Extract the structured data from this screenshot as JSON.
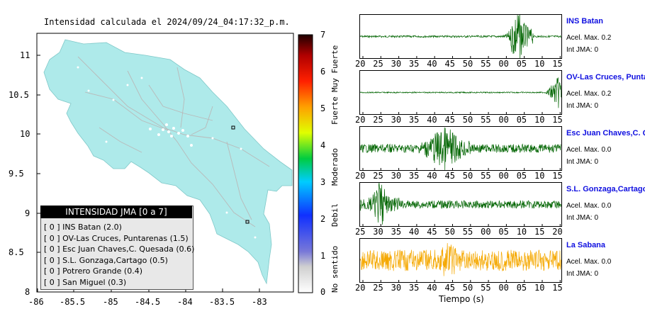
{
  "map": {
    "title": "Intensidad calculada el 2024/09/24_04:17:32_p.m.",
    "lat_ticks": [
      "11",
      "10.5",
      "10",
      "9.5",
      "9",
      "8.5",
      "8"
    ],
    "lon_ticks": [
      "-86",
      "-85.5",
      "-85",
      "-84.5",
      "-84",
      "-83.5",
      "-83"
    ],
    "land_color": "#aeeaea"
  },
  "colorbar": {
    "values": [
      "7",
      "6",
      "5",
      "4",
      "3",
      "2",
      "1",
      "0"
    ],
    "categories": [
      "Muy Fuerte",
      "Fuerte",
      "Moderado",
      "Debil",
      "No sentido"
    ]
  },
  "legend": {
    "title": "INTENSIDAD JMA [0 a 7]",
    "items": [
      "[ 0 ]  INS Batan (2.0)",
      "[ 0 ]  OV-Las Cruces, Puntarenas (1.5)",
      "[ 0 ]  Esc Juan Chaves,C. Quesada (0.6)",
      "[ 0 ]  S.L. Gonzaga,Cartago (0.5)",
      "[ 0 ]  Potrero Grande (0.4)",
      "[ 0 ]  San Miguel (0.3)"
    ]
  },
  "stations": [
    {
      "name": "INS Batan",
      "acel": "Acel. Max. 0.2",
      "int": "Int JMA: 0",
      "color": "#006400",
      "ticks": [
        "20",
        "25",
        "30",
        "35",
        "40",
        "45",
        "50",
        "55",
        "00",
        "05",
        "10",
        "15"
      ]
    },
    {
      "name": "OV-Las Cruces, Puntar",
      "acel": "Acel. Max. 0.2",
      "int": "Int JMA: 0",
      "color": "#006400",
      "ticks": [
        "20",
        "25",
        "30",
        "35",
        "40",
        "45",
        "50",
        "55",
        "00",
        "05",
        "10",
        "15"
      ]
    },
    {
      "name": "Esc Juan Chaves,C. Qu",
      "acel": "Acel. Max. 0.0",
      "int": "Int JMA: 0",
      "color": "#006400",
      "ticks": [
        "20",
        "25",
        "30",
        "35",
        "40",
        "45",
        "50",
        "55",
        "00",
        "05",
        "10",
        "15"
      ]
    },
    {
      "name": "S.L. Gonzaga,Cartago",
      "acel": "Acel. Max. 0.0",
      "int": "Int JMA: 0",
      "color": "#006400",
      "ticks": [
        "25",
        "30",
        "35",
        "40",
        "45",
        "50",
        "55",
        "00",
        "05",
        "10",
        "15",
        "20"
      ]
    },
    {
      "name": "La Sabana",
      "acel": "Acel. Max. 0.0",
      "int": "Int JMA: 0",
      "color": "#f5a800",
      "ticks": [
        "20",
        "25",
        "30",
        "35",
        "40",
        "45",
        "50",
        "55",
        "00",
        "05",
        "10",
        "15"
      ]
    }
  ],
  "xlabel": "Tiempo (s)"
}
